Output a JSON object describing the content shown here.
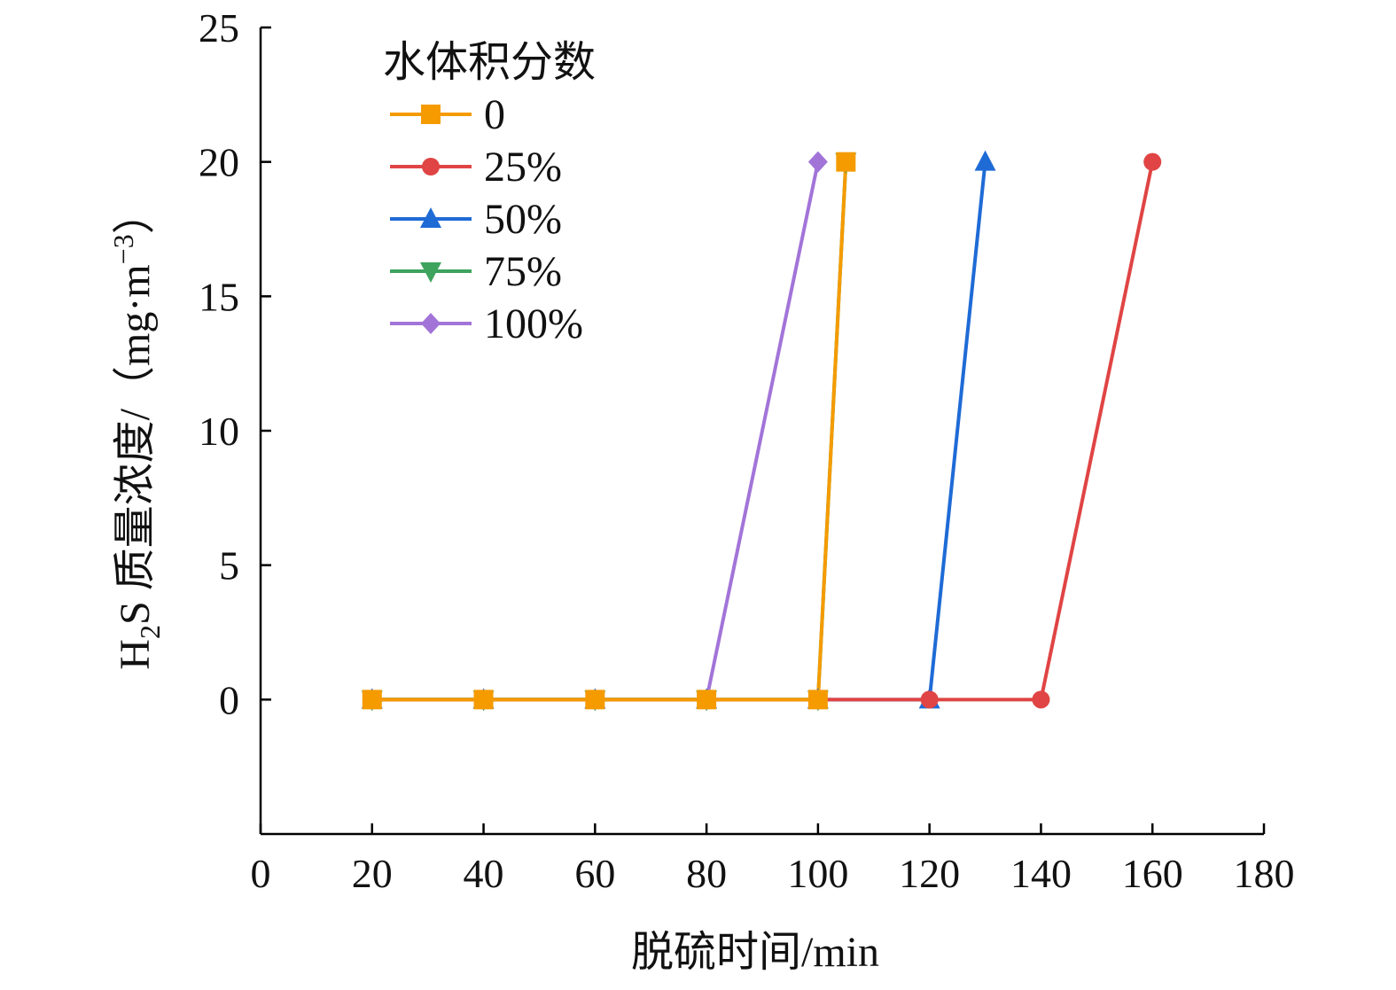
{
  "chart_data": {
    "type": "line",
    "xlabel": "脱硫时间/min",
    "ylabel": {
      "prefix": "H",
      "sub": "2",
      "mid": "S 质量浓度/（mg·m",
      "sup": "−3",
      "suffix": "）"
    },
    "xlim": [
      0,
      180
    ],
    "ylim": [
      -5,
      25
    ],
    "x_ticks": [
      "0",
      "20",
      "40",
      "60",
      "80",
      "100",
      "120",
      "140",
      "160",
      "180"
    ],
    "y_ticks": [
      "0",
      "5",
      "10",
      "15",
      "20",
      "25"
    ],
    "grid": false,
    "legend": {
      "title": "水体积分数",
      "position": "top-left"
    },
    "series": [
      {
        "name": "0",
        "color": "#F59B00",
        "marker": "square",
        "x": [
          20,
          40,
          60,
          80,
          100,
          105
        ],
        "y": [
          0,
          0,
          0,
          0,
          0,
          20
        ]
      },
      {
        "name": "25%",
        "color": "#E04444",
        "marker": "circle",
        "x": [
          20,
          40,
          60,
          80,
          100,
          120,
          140,
          160
        ],
        "y": [
          0,
          0,
          0,
          0,
          0,
          0,
          0,
          20
        ]
      },
      {
        "name": "50%",
        "color": "#1F6BD6",
        "marker": "triangle-up",
        "x": [
          20,
          40,
          60,
          80,
          100,
          120,
          130
        ],
        "y": [
          0,
          0,
          0,
          0,
          0,
          0,
          20
        ]
      },
      {
        "name": "75%",
        "color": "#3DA35D",
        "marker": "triangle-down",
        "x": [
          20,
          40,
          60,
          80,
          100,
          105
        ],
        "y": [
          0,
          0,
          0,
          0,
          0,
          20
        ]
      },
      {
        "name": "100%",
        "color": "#A274D8",
        "marker": "diamond",
        "x": [
          20,
          40,
          60,
          80,
          100
        ],
        "y": [
          0,
          0,
          0,
          0,
          20
        ]
      }
    ]
  }
}
